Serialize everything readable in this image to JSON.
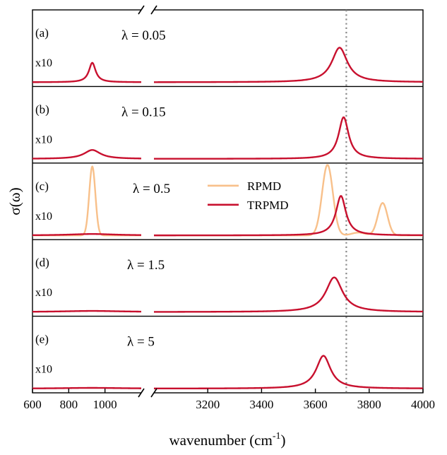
{
  "chart_data": {
    "type": "line",
    "ylabel": "σ(ω)",
    "xlabel": "wavenumber (cm",
    "xlabel_sup": "-1",
    "xlabel_tail": ")",
    "reference_line_x": 3715,
    "x_left_range": [
      600,
      1200
    ],
    "x_right_range": [
      3000,
      4000
    ],
    "x_ticks": [
      {
        "value": 600,
        "label": "600"
      },
      {
        "value": 800,
        "label": "800"
      },
      {
        "value": 1000,
        "label": "1000"
      },
      {
        "value": 3200,
        "label": "3200"
      },
      {
        "value": 3400,
        "label": "3400"
      },
      {
        "value": 3600,
        "label": "3600"
      },
      {
        "value": 3800,
        "label": "3800"
      },
      {
        "value": 4000,
        "label": "4000"
      }
    ],
    "legend": {
      "placement": "panel (c), center",
      "entries": [
        {
          "name": "RPMD",
          "color": "#f8c08a"
        },
        {
          "name": "TRPMD",
          "color": "#c8102e"
        }
      ]
    },
    "panels": [
      {
        "tag": "(a)",
        "lambda": "λ = 0.05",
        "scale_label": "x10",
        "series": [
          {
            "name": "TRPMD",
            "color": "#c8102e",
            "peaks": [
              {
                "x": 930,
                "height": 0.55,
                "width": 45,
                "shape": "lorentz"
              },
              {
                "x": 3690,
                "height": 0.98,
                "width": 70,
                "shape": "lorentz"
              }
            ]
          }
        ]
      },
      {
        "tag": "(b)",
        "lambda": "λ = 0.15",
        "scale_label": "x10",
        "series": [
          {
            "name": "TRPMD",
            "color": "#c8102e",
            "peaks": [
              {
                "x": 930,
                "height": 0.25,
                "width": 110,
                "shape": "lorentz"
              },
              {
                "x": 3705,
                "height": 1.18,
                "width": 45,
                "shape": "lorentz"
              }
            ]
          }
        ]
      },
      {
        "tag": "(c)",
        "lambda": "λ = 0.5",
        "scale_label": "x10",
        "series": [
          {
            "name": "RPMD",
            "color": "#f8c08a",
            "peaks": [
              {
                "x": 930,
                "height": 1.95,
                "width": 17,
                "shape": "gauss"
              },
              {
                "x": 3645,
                "height": 2.0,
                "width": 20,
                "shape": "gauss"
              },
              {
                "x": 3760,
                "height": 0.08,
                "width": 25,
                "shape": "gauss"
              },
              {
                "x": 3850,
                "height": 0.92,
                "width": 18,
                "shape": "gauss"
              }
            ]
          },
          {
            "name": "TRPMD",
            "color": "#c8102e",
            "peaks": [
              {
                "x": 930,
                "height": 0.04,
                "width": 300,
                "shape": "lorentz"
              },
              {
                "x": 3695,
                "height": 1.12,
                "width": 45,
                "shape": "lorentz"
              }
            ]
          }
        ]
      },
      {
        "tag": "(d)",
        "lambda": "λ = 1.5",
        "scale_label": "x10",
        "series": [
          {
            "name": "TRPMD",
            "color": "#c8102e",
            "peaks": [
              {
                "x": 930,
                "height": 0.03,
                "width": 400,
                "shape": "lorentz"
              },
              {
                "x": 3670,
                "height": 0.98,
                "width": 75,
                "shape": "lorentz"
              }
            ]
          }
        ]
      },
      {
        "tag": "(e)",
        "lambda": "λ = 5",
        "scale_label": "x10",
        "series": [
          {
            "name": "TRPMD",
            "color": "#c8102e",
            "peaks": [
              {
                "x": 930,
                "height": 0.02,
                "width": 400,
                "shape": "lorentz"
              },
              {
                "x": 3630,
                "height": 0.93,
                "width": 65,
                "shape": "lorentz"
              }
            ]
          }
        ]
      }
    ]
  }
}
